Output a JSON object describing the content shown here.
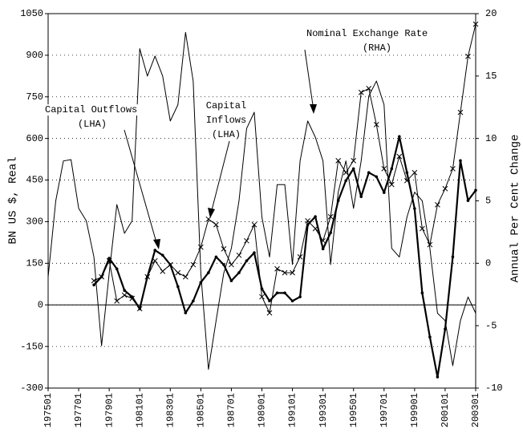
{
  "chart_data": {
    "type": "line",
    "y_label": "BN US $, Real",
    "y2_label": "Annual Per Cent Change",
    "x": [
      1975,
      1975.5,
      1976,
      1976.5,
      1977,
      1977.5,
      1978,
      1978.5,
      1979,
      1979.5,
      1980,
      1980.5,
      1981,
      1981.5,
      1982,
      1982.5,
      1983,
      1983.5,
      1984,
      1984.5,
      1985,
      1985.5,
      1986,
      1986.5,
      1987,
      1987.5,
      1988,
      1988.5,
      1989,
      1989.5,
      1990,
      1990.5,
      1991,
      1991.5,
      1992,
      1992.5,
      1993,
      1993.5,
      1994,
      1994.5,
      1995,
      1995.5,
      1996,
      1996.5,
      1997,
      1997.5,
      1998,
      1998.5,
      1999,
      1999.5,
      2000,
      2000.5,
      2001,
      2001.5,
      2002,
      2002.5,
      2003
    ],
    "series": [
      {
        "name": "Nominal Exchange Rate",
        "axis": "y2",
        "color": "#000000",
        "line_width": 1,
        "marker": "none",
        "values": [
          -1.1,
          5.0,
          8.2,
          8.3,
          4.4,
          3.4,
          0.5,
          -6.6,
          -0.8,
          4.7,
          2.4,
          3.4,
          17.2,
          15,
          16.6,
          15,
          11.4,
          12.7,
          18.5,
          14.6,
          -0.8,
          -8.5,
          -4.6,
          -0.8,
          1.2,
          5,
          10.8,
          12.1,
          3.7,
          0.5,
          6.3,
          6.3,
          -0.1,
          8.2,
          11.4,
          10.1,
          8.2,
          -0.1,
          5.7,
          8.2,
          4.4,
          8.2,
          13.4,
          14.6,
          12.7,
          1.2,
          0.5,
          3.7,
          5.7,
          5,
          1.2,
          -4,
          -4.6,
          -8.2,
          -4.6,
          -2.7,
          -4
        ]
      },
      {
        "name": "Capital Outflows",
        "axis": "y",
        "color": "#000000",
        "line_width": 2.2,
        "marker": "dot",
        "values": [
          null,
          null,
          null,
          null,
          null,
          null,
          72,
          101,
          168,
          130,
          52,
          29,
          -14,
          101,
          197,
          179,
          145,
          66,
          -29,
          14,
          81,
          116,
          173,
          145,
          87,
          116,
          159,
          188,
          58,
          14,
          43,
          43,
          14,
          29,
          289,
          318,
          202,
          260,
          376,
          448,
          491,
          390,
          477,
          462,
          405,
          491,
          607,
          477,
          347,
          43,
          -116,
          -260,
          -87,
          173,
          520,
          376,
          413
        ]
      },
      {
        "name": "Capital Inflows",
        "axis": "y",
        "color": "#000000",
        "line_width": 1,
        "marker": "x",
        "values": [
          null,
          null,
          null,
          null,
          null,
          null,
          87,
          101,
          159,
          14,
          35,
          23,
          -14,
          101,
          159,
          121,
          145,
          116,
          101,
          145,
          208,
          309,
          289,
          202,
          145,
          179,
          231,
          289,
          29,
          -29,
          130,
          116,
          116,
          173,
          303,
          275,
          231,
          318,
          520,
          477,
          520,
          766,
          780,
          650,
          491,
          434,
          535,
          448,
          477,
          275,
          217,
          361,
          419,
          491,
          694,
          896,
          1012
        ]
      }
    ],
    "annotations": [
      {
        "lines": [
          "Nominal Exchange Rate",
          "(RHA)"
        ]
      },
      {
        "lines": [
          "Capital Outflows",
          "(LHA)"
        ]
      },
      {
        "lines": [
          "Capital",
          "Inflows",
          "(LHA)"
        ]
      }
    ],
    "xlim": [
      1975,
      2003
    ],
    "xticks": [
      {
        "value": 1975,
        "label": "197501"
      },
      {
        "value": 1977,
        "label": "197701"
      },
      {
        "value": 1979,
        "label": "197901"
      },
      {
        "value": 1981,
        "label": "198101"
      },
      {
        "value": 1983,
        "label": "198301"
      },
      {
        "value": 1985,
        "label": "198501"
      },
      {
        "value": 1987,
        "label": "198701"
      },
      {
        "value": 1989,
        "label": "198901"
      },
      {
        "value": 1991,
        "label": "199101"
      },
      {
        "value": 1993,
        "label": "199301"
      },
      {
        "value": 1995,
        "label": "199501"
      },
      {
        "value": 1997,
        "label": "199701"
      },
      {
        "value": 1999,
        "label": "199901"
      },
      {
        "value": 2001,
        "label": "200101"
      },
      {
        "value": 2003,
        "label": "200301"
      }
    ],
    "ylim": [
      -300,
      1050
    ],
    "yticks": [
      -300,
      -150,
      0,
      150,
      300,
      450,
      600,
      750,
      900,
      1050
    ],
    "y2lim": [
      -10,
      20
    ],
    "y2ticks": [
      -10,
      -5,
      0,
      5,
      10,
      15,
      20
    ],
    "grid": true
  }
}
